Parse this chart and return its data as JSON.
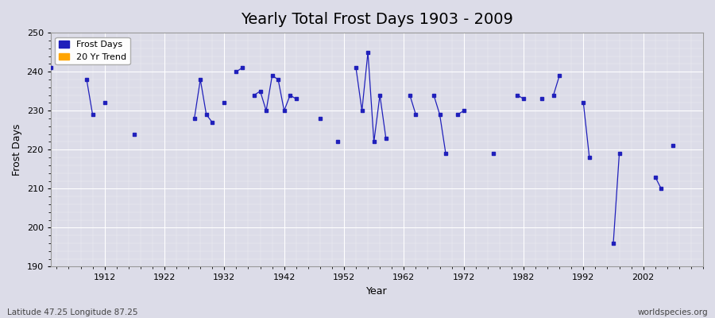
{
  "title": "Yearly Total Frost Days 1903 - 2009",
  "xlabel": "Year",
  "ylabel": "Frost Days",
  "ylim": [
    190,
    250
  ],
  "xlim": [
    1903,
    2012
  ],
  "xticks": [
    1912,
    1922,
    1932,
    1942,
    1952,
    1962,
    1972,
    1982,
    1992,
    2002
  ],
  "yticks": [
    190,
    200,
    210,
    220,
    230,
    240,
    250
  ],
  "background_color": "#dcdce8",
  "plot_bg_color": "#dcdce8",
  "line_color": "#2020bb",
  "marker_color": "#2020bb",
  "trend_color": "#ffa500",
  "data_points": [
    [
      1903,
      241
    ],
    [
      1909,
      238
    ],
    [
      1910,
      229
    ],
    [
      1912,
      232
    ],
    [
      1917,
      224
    ],
    [
      1927,
      228
    ],
    [
      1928,
      238
    ],
    [
      1929,
      229
    ],
    [
      1930,
      227
    ],
    [
      1932,
      232
    ],
    [
      1934,
      240
    ],
    [
      1935,
      241
    ],
    [
      1937,
      234
    ],
    [
      1938,
      235
    ],
    [
      1939,
      230
    ],
    [
      1940,
      239
    ],
    [
      1941,
      238
    ],
    [
      1942,
      230
    ],
    [
      1943,
      234
    ],
    [
      1944,
      233
    ],
    [
      1948,
      228
    ],
    [
      1951,
      222
    ],
    [
      1954,
      241
    ],
    [
      1955,
      230
    ],
    [
      1956,
      245
    ],
    [
      1957,
      222
    ],
    [
      1958,
      234
    ],
    [
      1959,
      223
    ],
    [
      1963,
      234
    ],
    [
      1964,
      229
    ],
    [
      1967,
      234
    ],
    [
      1968,
      229
    ],
    [
      1969,
      219
    ],
    [
      1971,
      229
    ],
    [
      1972,
      230
    ],
    [
      1977,
      219
    ],
    [
      1981,
      234
    ],
    [
      1982,
      233
    ],
    [
      1985,
      233
    ],
    [
      1987,
      234
    ],
    [
      1988,
      239
    ],
    [
      1992,
      232
    ],
    [
      1993,
      218
    ],
    [
      1997,
      196
    ],
    [
      1998,
      219
    ],
    [
      2004,
      213
    ],
    [
      2005,
      210
    ],
    [
      2007,
      221
    ]
  ],
  "legend_frost_label": "Frost Days",
  "legend_trend_label": "20 Yr Trend",
  "footnote_left": "Latitude 47.25 Longitude 87.25",
  "footnote_right": "worldspecies.org",
  "title_fontsize": 14,
  "axis_label_fontsize": 9,
  "tick_fontsize": 8,
  "legend_fontsize": 8,
  "footnote_fontsize": 7.5
}
